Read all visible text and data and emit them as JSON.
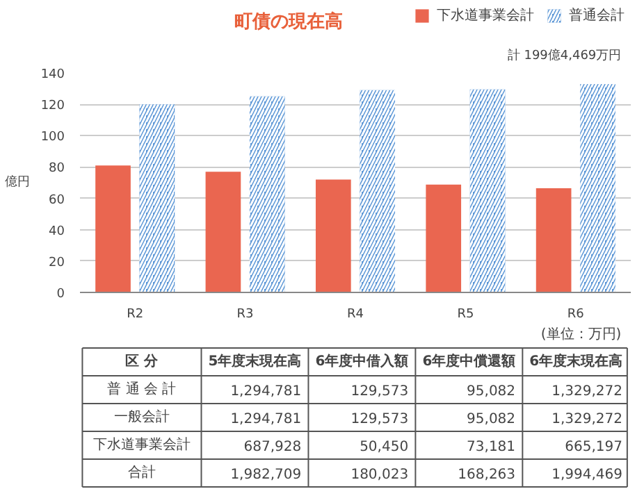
{
  "chart_data": [
    {
      "type": "bar",
      "title": "町債の現在高",
      "ylabel": "億円",
      "categories": [
        "R2",
        "R3",
        "R4",
        "R5",
        "R6"
      ],
      "series": [
        {
          "name": "下水道事業会計",
          "color": "#ea6650",
          "values": [
            81,
            77,
            72,
            68.8,
            66.5
          ]
        },
        {
          "name": "普通会計",
          "color": "#5b96d6",
          "values": [
            120,
            125,
            129,
            129.5,
            132.9
          ]
        }
      ],
      "ylim": [
        0,
        140
      ],
      "yticks": [
        0,
        20,
        40,
        60,
        80,
        100,
        120,
        140
      ],
      "grid": "y",
      "legend": "top right",
      "annotations": [
        "計 199億4,469万円",
        "(単位：万円)"
      ]
    },
    {
      "type": "other",
      "annotations": [
        "区 分",
        "5年度末現在高",
        "6年度中借入額",
        "6年度中償還額",
        "6年度末現在高",
        "普 通 会 計",
        "1,294,781",
        "129,573",
        "95,082",
        "1,329,272",
        "一般会計",
        "1,294,781",
        "129,573",
        "95,082",
        "1,329,272",
        "下水道事業会計",
        "687,928",
        "50,450",
        "73,181",
        "665,197",
        "合計",
        "1,982,709",
        "180,023",
        "168,263",
        "1,994,469"
      ]
    }
  ]
}
